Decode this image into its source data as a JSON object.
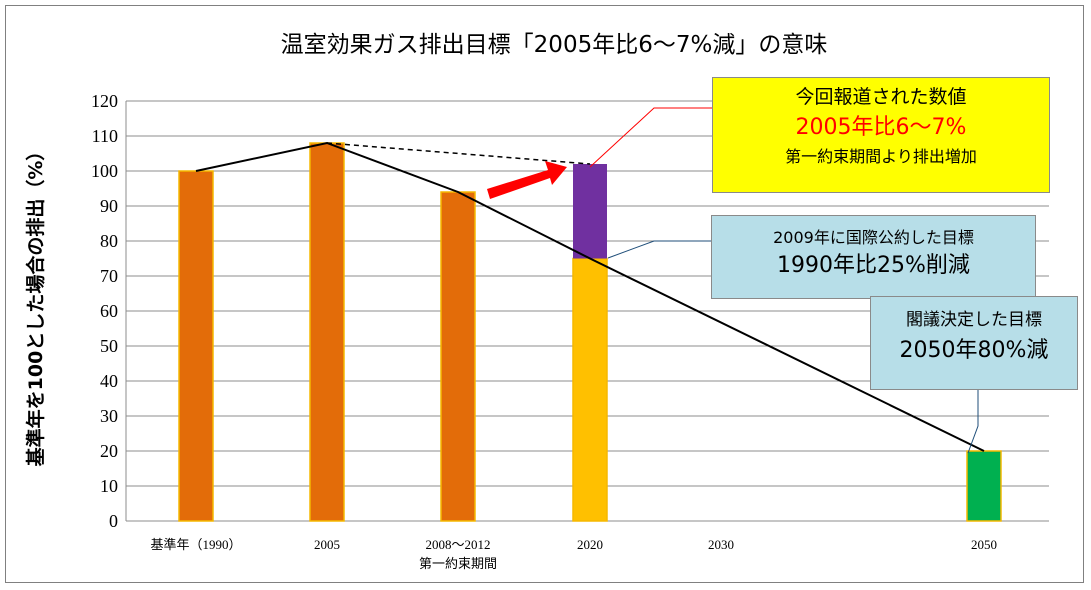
{
  "chart_data": {
    "type": "bar",
    "title": "温室効果ガス排出目標「2005年比6～7%減」の意味",
    "ylabel": "基準年を100とした場合の排出（%）",
    "xlabel": "",
    "ylim": [
      0,
      120
    ],
    "yticks": [
      0,
      10,
      20,
      30,
      40,
      50,
      60,
      70,
      80,
      90,
      100,
      110,
      120
    ],
    "grid": true,
    "categories": [
      "基準年（1990）",
      "2005",
      "2008～2012",
      "2020",
      "2030",
      "2050"
    ],
    "category_sublabels": [
      "",
      "",
      "第一約束期間",
      "",
      "",
      ""
    ],
    "series": [
      {
        "values": [
          100,
          108,
          94,
          75,
          null,
          20
        ]
      },
      {
        "values": [
          null,
          null,
          null,
          27,
          null,
          null
        ]
      }
    ],
    "bar_colors": [
      "#E36C09",
      "#E36C09",
      "#E36C09",
      "#FFC000",
      null,
      "#00B050"
    ],
    "stack_color": "#7030A0",
    "trend_line": {
      "categories": [
        "基準年（1990）",
        "2005",
        "2008～2012",
        "2020",
        "2050"
      ],
      "values": [
        100,
        108,
        94,
        75,
        20
      ]
    },
    "dashed_line": {
      "from": [
        "2005",
        108
      ],
      "to": [
        "2020",
        102
      ]
    },
    "annotations": [
      {
        "id": "reported",
        "lines": [
          "今回報道された数値",
          "2005年比6～7%",
          "第一約束期間より排出増加"
        ],
        "background": "#FFFF00",
        "highlight_color": "#FF0000"
      },
      {
        "id": "intl",
        "lines": [
          "2009年に国際公約した目標",
          "1990年比25%削減"
        ],
        "background": "#B7DEE8"
      },
      {
        "id": "cabinet",
        "lines": [
          "閣議決定した目標",
          "2050年80%減"
        ],
        "background": "#B7DEE8"
      }
    ]
  }
}
